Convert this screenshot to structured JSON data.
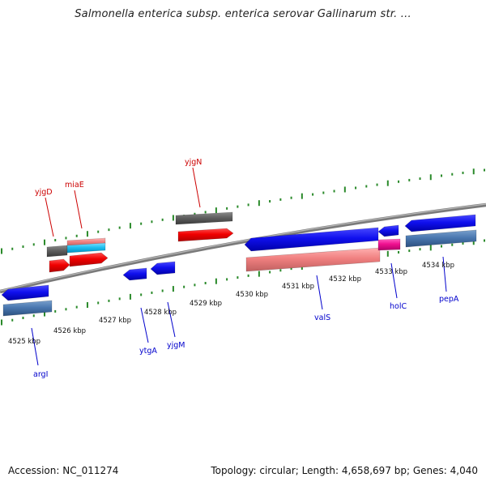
{
  "title": "Salmonella enterica subsp. enterica serovar Gallinarum str. ...",
  "footer": {
    "accession": "Accession: NC_011274",
    "summary": "Topology: circular; Length: 4,658,697 bp; Genes: 4,040"
  },
  "colors": {
    "forward_label": "#cc0000",
    "reverse_label": "#0000cc",
    "backbone": "#888888",
    "tick": "#2a8a2a"
  },
  "ticks": [
    {
      "label": "4525 kbp"
    },
    {
      "label": "4526 kbp"
    },
    {
      "label": "4527 kbp"
    },
    {
      "label": "4528 kbp"
    },
    {
      "label": "4529 kbp"
    },
    {
      "label": "4530 kbp"
    },
    {
      "label": "4531 kbp"
    },
    {
      "label": "4532 kbp"
    },
    {
      "label": "4533 kbp"
    },
    {
      "label": "4534 kbp"
    }
  ],
  "gene_labels": [
    {
      "name": "yjgD",
      "strand": "forward"
    },
    {
      "name": "miaE",
      "strand": "forward"
    },
    {
      "name": "yjgN",
      "strand": "forward"
    },
    {
      "name": "argI",
      "strand": "reverse"
    },
    {
      "name": "ytgA",
      "strand": "reverse"
    },
    {
      "name": "yjgM",
      "strand": "reverse"
    },
    {
      "name": "valS",
      "strand": "reverse"
    },
    {
      "name": "holC",
      "strand": "reverse"
    },
    {
      "name": "pepA",
      "strand": "reverse"
    }
  ]
}
